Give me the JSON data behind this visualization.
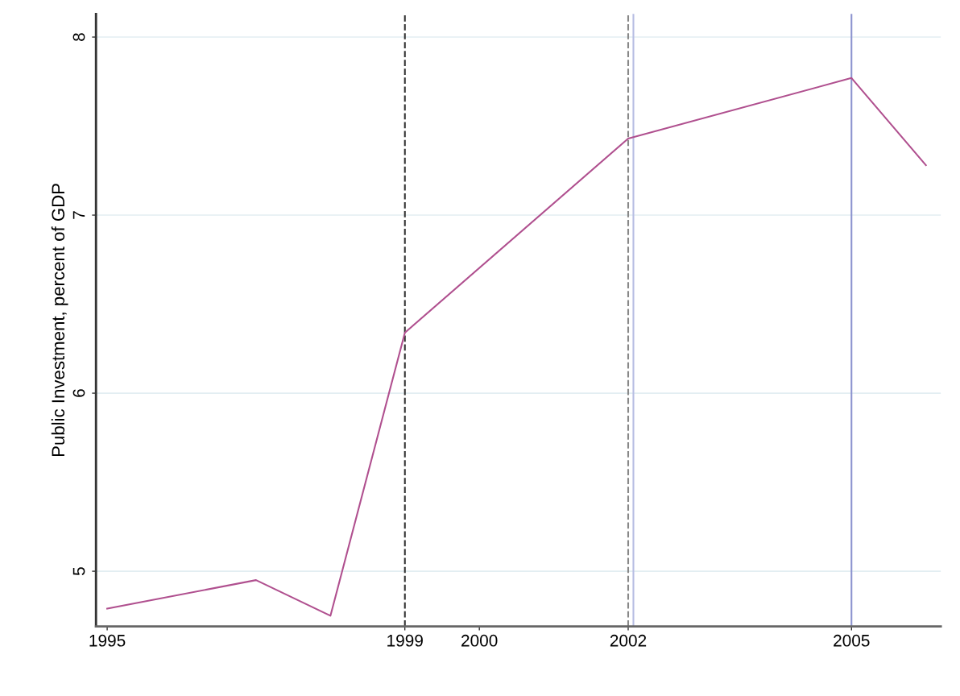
{
  "chart_data": {
    "type": "line",
    "ylabel": "Public Investment, percent of GDP",
    "x": [
      1995,
      1997,
      1998,
      1999,
      2002,
      2005,
      2006
    ],
    "series": [
      {
        "color": "#b0508f",
        "values": [
          4.79,
          4.95,
          4.75,
          6.34,
          7.43,
          7.77,
          7.28
        ]
      }
    ],
    "xlim": [
      1994.85,
      2006.2
    ],
    "ylim": [
      4.69,
      8.13
    ],
    "xticks": [
      1995,
      1999,
      2000,
      2002,
      2005
    ],
    "yticks": [
      5,
      6,
      7,
      8
    ],
    "grid": "y",
    "marker": "none",
    "line_style": "solid",
    "ref_lines": [
      {
        "axis": "x",
        "value": 1999,
        "color": "#333333",
        "line_style": "dashed"
      },
      {
        "axis": "x",
        "value": 2002,
        "color": "#888888",
        "line_style": "dashed"
      },
      {
        "axis": "x",
        "value": 2002.07,
        "color": "#b7bde3",
        "line_style": "solid"
      },
      {
        "axis": "x",
        "value": 2005,
        "color": "#8c93cf",
        "line_style": "solid"
      }
    ]
  }
}
